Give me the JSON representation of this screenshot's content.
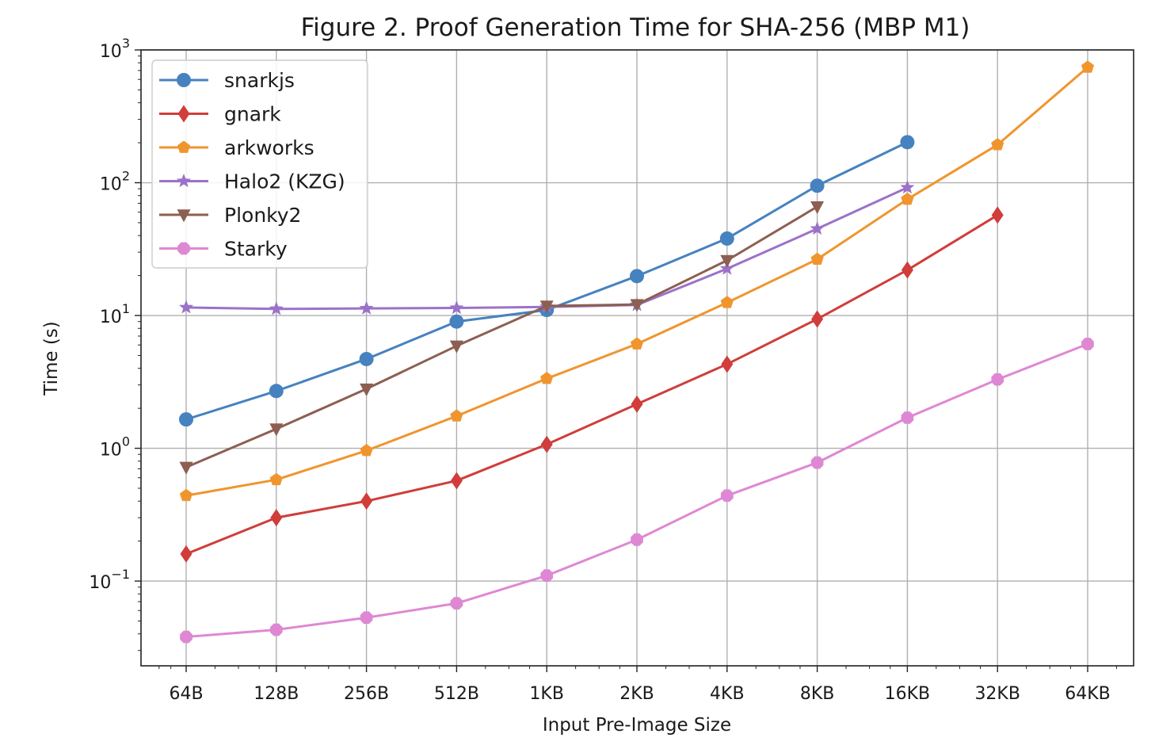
{
  "chart_data": {
    "type": "line",
    "title": "Figure 2. Proof Generation Time for SHA-256 (MBP M1)",
    "xlabel": "Input Pre-Image Size",
    "ylabel": "Time (s)",
    "yscale": "log",
    "ylim": [
      0.023,
      1000
    ],
    "y_ticks": [
      {
        "base": "10",
        "exp": "3",
        "value": 1000
      },
      {
        "base": "10",
        "exp": "2",
        "value": 100
      },
      {
        "base": "10",
        "exp": "1",
        "value": 10
      },
      {
        "base": "10",
        "exp": "0",
        "value": 1
      },
      {
        "base": "10",
        "exp": "−1",
        "value": 0.1
      }
    ],
    "grid": true,
    "legend_position": "top-left",
    "categories": [
      "64B",
      "128B",
      "256B",
      "512B",
      "1KB",
      "2KB",
      "4KB",
      "8KB",
      "16KB",
      "32KB",
      "64KB"
    ],
    "series": [
      {
        "name": "snarkjs",
        "color": "#4682bf",
        "marker": "circle",
        "values": [
          1.65,
          2.7,
          4.7,
          9.0,
          11.0,
          19.8,
          38.0,
          95.0,
          202.0,
          null,
          null
        ]
      },
      {
        "name": "gnark",
        "color": "#d03d3a",
        "marker": "diamond",
        "values": [
          0.16,
          0.3,
          0.4,
          0.57,
          1.07,
          2.15,
          4.3,
          9.4,
          22.0,
          57.0,
          null
        ]
      },
      {
        "name": "arkworks",
        "color": "#f0952e",
        "marker": "pentagon",
        "values": [
          0.44,
          0.58,
          0.96,
          1.75,
          3.35,
          6.1,
          12.5,
          26.5,
          75.0,
          193.0,
          740.0
        ]
      },
      {
        "name": "Halo2 (KZG)",
        "color": "#9b72c9",
        "marker": "star",
        "values": [
          11.5,
          11.2,
          11.3,
          11.4,
          11.6,
          12.0,
          22.5,
          45.0,
          92.0,
          null,
          null
        ]
      },
      {
        "name": "Plonky2",
        "color": "#8c5f52",
        "marker": "triangle-down",
        "values": [
          0.72,
          1.4,
          2.8,
          5.9,
          11.8,
          12.1,
          26.0,
          66.0,
          null,
          null,
          null
        ]
      },
      {
        "name": "Starky",
        "color": "#de88d4",
        "marker": "octagon",
        "values": [
          0.038,
          0.043,
          0.053,
          0.068,
          0.11,
          0.205,
          0.44,
          0.78,
          1.7,
          3.3,
          6.1
        ]
      }
    ]
  }
}
